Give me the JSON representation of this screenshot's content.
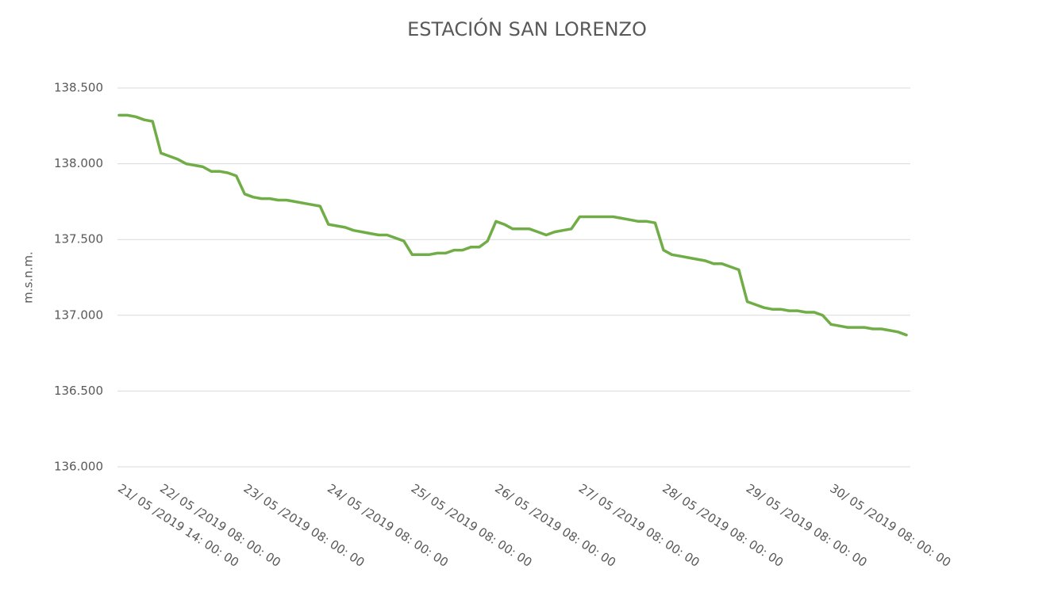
{
  "chart_data": {
    "type": "line",
    "title": "ESTACIÓN SAN LORENZO",
    "y_label": "m.s.n.m.",
    "categories": [
      "21/ 05 /2019 14: 00: 00",
      null,
      null,
      null,
      null,
      "22/ 05 /2019 08: 00: 00",
      null,
      null,
      null,
      null,
      null,
      null,
      null,
      null,
      null,
      "23/ 05 /2019 08: 00: 00",
      null,
      null,
      null,
      null,
      null,
      null,
      null,
      null,
      null,
      "24/ 05 /2019 08: 00: 00",
      null,
      null,
      null,
      null,
      null,
      null,
      null,
      null,
      null,
      "25/ 05 /2019 08: 00: 00",
      null,
      null,
      null,
      null,
      null,
      null,
      null,
      null,
      null,
      "26/ 05 /2019 08: 00: 00",
      null,
      null,
      null,
      null,
      null,
      null,
      null,
      null,
      null,
      "27/ 05 /2019 08: 00: 00",
      null,
      null,
      null,
      null,
      null,
      null,
      null,
      null,
      null,
      "28/ 05 /2019 08: 00: 00",
      null,
      null,
      null,
      null,
      null,
      null,
      null,
      null,
      null,
      "29/ 05 /2019 08: 00: 00",
      null,
      null,
      null,
      null,
      null,
      null,
      null,
      null,
      null,
      "30/ 05 /2019 08: 00: 00",
      null,
      null,
      null,
      null,
      null,
      null,
      null,
      null,
      null
    ],
    "values": [
      138.32,
      138.32,
      138.31,
      138.29,
      138.28,
      138.07,
      138.05,
      138.03,
      138.0,
      137.99,
      137.98,
      137.95,
      137.95,
      137.94,
      137.92,
      137.8,
      137.78,
      137.77,
      137.77,
      137.76,
      137.76,
      137.75,
      137.74,
      137.73,
      137.72,
      137.6,
      137.59,
      137.58,
      137.56,
      137.55,
      137.54,
      137.53,
      137.53,
      137.51,
      137.49,
      137.4,
      137.4,
      137.4,
      137.41,
      137.41,
      137.43,
      137.43,
      137.45,
      137.45,
      137.49,
      137.62,
      137.6,
      137.57,
      137.57,
      137.57,
      137.55,
      137.53,
      137.55,
      137.56,
      137.57,
      137.65,
      137.65,
      137.65,
      137.65,
      137.65,
      137.64,
      137.63,
      137.62,
      137.62,
      137.61,
      137.43,
      137.4,
      137.39,
      137.38,
      137.37,
      137.36,
      137.34,
      137.34,
      137.32,
      137.3,
      137.09,
      137.07,
      137.05,
      137.04,
      137.04,
      137.03,
      137.03,
      137.02,
      137.02,
      137.0,
      136.94,
      136.93,
      136.92,
      136.92,
      136.92,
      136.91,
      136.91,
      136.9,
      136.89,
      136.87
    ],
    "color": "#70ad47",
    "ylim": [
      136,
      138.5
    ],
    "yticks": [
      {
        "value": 136,
        "label": "136.000"
      },
      {
        "value": 136.5,
        "label": "136.500"
      },
      {
        "value": 137,
        "label": "137.000"
      },
      {
        "value": 137.5,
        "label": "137.500"
      },
      {
        "value": 138,
        "label": "138.000"
      },
      {
        "value": 138.5,
        "label": "138.500"
      }
    ],
    "grid": true
  }
}
